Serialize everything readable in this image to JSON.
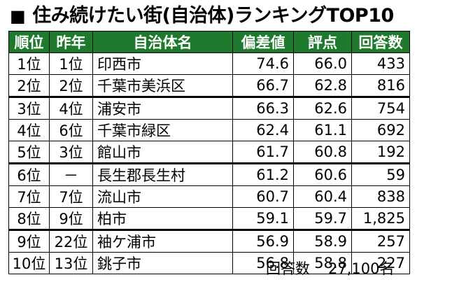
{
  "title": {
    "square": "■",
    "text": "住み続けたい街(自治体)ランキングTOP10"
  },
  "table": {
    "headers": {
      "rank": "順位",
      "last_year": "昨年",
      "name": "自治体名",
      "deviation": "偏差値",
      "score": "評点",
      "responses": "回答数"
    },
    "rows": [
      {
        "rank": "1位",
        "last_year": "1位",
        "name": "印西市",
        "deviation": "74.6",
        "score": "66.0",
        "responses": "433"
      },
      {
        "rank": "2位",
        "last_year": "2位",
        "name": "千葉市美浜区",
        "deviation": "66.7",
        "score": "62.8",
        "responses": "816"
      },
      {
        "rank": "3位",
        "last_year": "4位",
        "name": "浦安市",
        "deviation": "66.3",
        "score": "62.6",
        "responses": "754"
      },
      {
        "rank": "4位",
        "last_year": "6位",
        "name": "千葉市緑区",
        "deviation": "62.4",
        "score": "61.1",
        "responses": "692"
      },
      {
        "rank": "5位",
        "last_year": "3位",
        "name": "館山市",
        "deviation": "61.7",
        "score": "60.8",
        "responses": "192"
      },
      {
        "rank": "6位",
        "last_year": "－",
        "name": "長生郡長生村",
        "deviation": "61.2",
        "score": "60.6",
        "responses": "59"
      },
      {
        "rank": "7位",
        "last_year": "7位",
        "name": "流山市",
        "deviation": "60.7",
        "score": "60.4",
        "responses": "838"
      },
      {
        "rank": "8位",
        "last_year": "9位",
        "name": "柏市",
        "deviation": "59.1",
        "score": "59.7",
        "responses": "1,825"
      },
      {
        "rank": "9位",
        "last_year": "22位",
        "name": "袖ケ浦市",
        "deviation": "56.9",
        "score": "58.9",
        "responses": "257"
      },
      {
        "rank": "10位",
        "last_year": "13位",
        "name": "銚子市",
        "deviation": "56.8",
        "score": "58.8",
        "responses": "227"
      }
    ]
  },
  "footer": {
    "label": "回答数",
    "value": "27,100名"
  },
  "colors": {
    "header_bg": "#1f7a2e",
    "header_text": "#ffffff"
  }
}
